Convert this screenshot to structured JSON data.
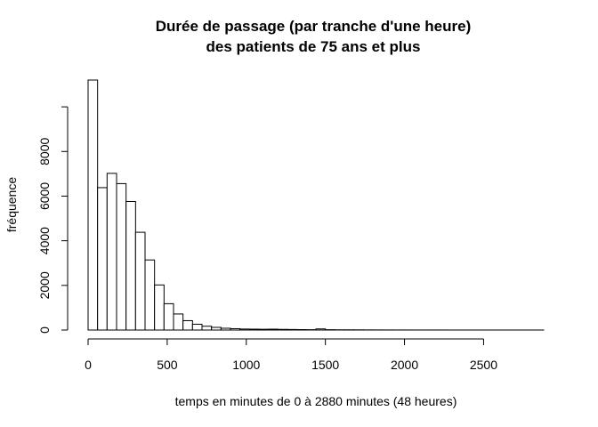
{
  "chart_data": {
    "type": "bar",
    "title_line1": "Durée de passage (par tranche d'une heure)",
    "title_line2": "des patients de 75 ans et plus",
    "xlabel": "temps en minutes de 0 à 2880 minutes (48 heures)",
    "ylabel": "fréquence",
    "bin_width": 60,
    "x_range": [
      0,
      2880
    ],
    "xlim": [
      0,
      2880
    ],
    "ylim": [
      0,
      11200
    ],
    "x_ticks": [
      0,
      500,
      1000,
      1500,
      2000,
      2500
    ],
    "y_ticks": [
      0,
      2000,
      4000,
      6000,
      8000
    ],
    "values": [
      11200,
      6380,
      7020,
      6560,
      5760,
      4380,
      3140,
      2020,
      1180,
      720,
      420,
      260,
      170,
      120,
      80,
      60,
      45,
      40,
      35,
      40,
      30,
      25,
      20,
      15,
      50,
      15,
      10,
      10,
      8,
      6,
      5,
      4,
      3,
      3,
      2,
      2,
      2,
      2,
      1,
      1,
      1,
      1,
      1,
      1,
      1,
      1,
      1,
      1
    ],
    "grid": false,
    "legend": "none"
  }
}
